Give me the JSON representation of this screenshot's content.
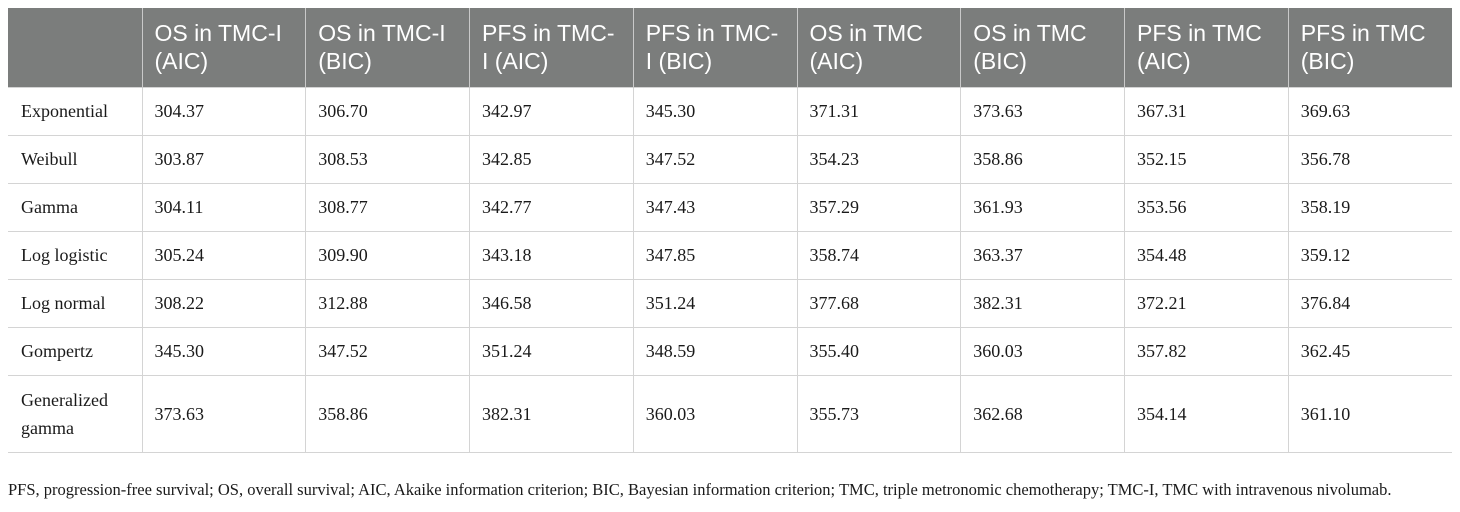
{
  "table": {
    "headers": [
      "",
      "OS in TMC-I (AIC)",
      "OS in TMC-I (BIC)",
      "PFS in TMC-I (AIC)",
      "PFS in TMC-I (BIC)",
      "OS in TMC (AIC)",
      "OS in TMC (BIC)",
      "PFS in TMC (AIC)",
      "PFS in TMC (BIC)"
    ],
    "rows": [
      [
        "Exponential",
        "304.37",
        "306.70",
        "342.97",
        "345.30",
        "371.31",
        "373.63",
        "367.31",
        "369.63"
      ],
      [
        "Weibull",
        "303.87",
        "308.53",
        "342.85",
        "347.52",
        "354.23",
        "358.86",
        "352.15",
        "356.78"
      ],
      [
        "Gamma",
        "304.11",
        "308.77",
        "342.77",
        "347.43",
        "357.29",
        "361.93",
        "353.56",
        "358.19"
      ],
      [
        "Log logistic",
        "305.24",
        "309.90",
        "343.18",
        "347.85",
        "358.74",
        "363.37",
        "354.48",
        "359.12"
      ],
      [
        "Log normal",
        "308.22",
        "312.88",
        "346.58",
        "351.24",
        "377.68",
        "382.31",
        "372.21",
        "376.84"
      ],
      [
        "Gompertz",
        "345.30",
        "347.52",
        "351.24",
        "348.59",
        "355.40",
        "360.03",
        "357.82",
        "362.45"
      ],
      [
        "Generalized gamma",
        "373.63",
        "358.86",
        "382.31",
        "360.03",
        "355.73",
        "362.68",
        "354.14",
        "361.10"
      ]
    ]
  },
  "footnote": "PFS, progression-free survival; OS, overall survival; AIC, Akaike information criterion; BIC, Bayesian information criterion; TMC, triple metronomic chemotherapy; TMC-I, TMC with intravenous nivolumab.",
  "colors": {
    "header_bg": "#7b7d7c",
    "header_text": "#ffffff",
    "rule": "#d4d4d4"
  }
}
